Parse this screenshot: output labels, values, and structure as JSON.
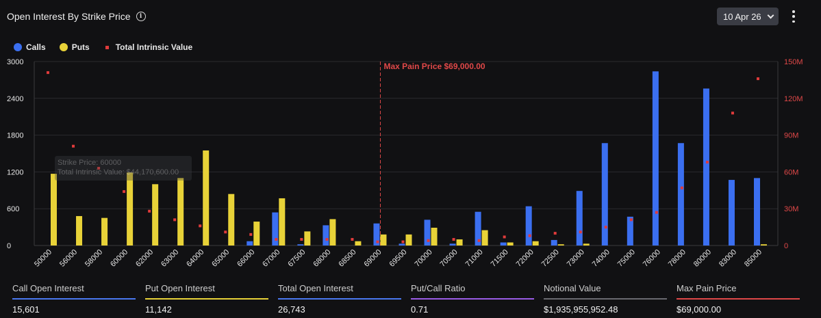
{
  "header": {
    "title": "Open Interest By Strike Price",
    "info_icon": "info-circle-icon",
    "date_select": "10 Apr 26",
    "more_icon": "vertical-ellipsis-icon"
  },
  "legend": {
    "calls": "Calls",
    "puts": "Puts",
    "intrinsic": "Total Intrinsic Value"
  },
  "colors": {
    "calls": "#3b6ff0",
    "puts": "#e8d238",
    "intrinsic": "#e03b3b",
    "maxpain": "#e04848"
  },
  "tooltip": {
    "strike": "Strike Price: 60000",
    "intrinsic": "Total Intrinsic Value: $44,170,600.00"
  },
  "chart_data": {
    "type": "bar",
    "categories": [
      "50000",
      "56000",
      "58000",
      "60000",
      "62000",
      "63000",
      "64000",
      "65000",
      "66000",
      "67000",
      "67500",
      "68000",
      "68500",
      "69000",
      "69500",
      "70000",
      "70500",
      "71000",
      "71500",
      "72000",
      "72500",
      "73000",
      "74000",
      "75000",
      "76000",
      "78000",
      "80000",
      "83000",
      "85000"
    ],
    "series": [
      {
        "name": "Calls",
        "values": [
          0,
          0,
          0,
          0,
          0,
          0,
          0,
          0,
          70,
          540,
          20,
          330,
          0,
          360,
          30,
          420,
          30,
          550,
          50,
          640,
          90,
          890,
          1670,
          470,
          2840,
          1670,
          2560,
          1070,
          1100
        ]
      },
      {
        "name": "Puts",
        "values": [
          1170,
          480,
          450,
          1190,
          1000,
          1100,
          1550,
          840,
          390,
          770,
          230,
          430,
          70,
          180,
          180,
          290,
          100,
          250,
          50,
          70,
          20,
          30,
          0,
          0,
          0,
          0,
          0,
          0,
          20
        ]
      },
      {
        "name": "Total Intrinsic Value",
        "axis": "right",
        "values": [
          141,
          81,
          63,
          44,
          28,
          21,
          16,
          11,
          9,
          5,
          5,
          5,
          5,
          3,
          3,
          4,
          5,
          4,
          7,
          8,
          10,
          11,
          15,
          21,
          27,
          47,
          68,
          108,
          136
        ]
      }
    ],
    "left_axis": {
      "ticks": [
        "0",
        "600",
        "1200",
        "1800",
        "2400",
        "3000"
      ],
      "ylim": [
        0,
        3000
      ]
    },
    "right_axis": {
      "ticks": [
        "0",
        "30M",
        "60M",
        "90M",
        "120M",
        "150M"
      ],
      "ylim": [
        0,
        150
      ],
      "unit": "M"
    },
    "max_pain": {
      "strike": "69000",
      "label": "Max Pain Price $69,000.00"
    },
    "grid": true
  },
  "stats": [
    {
      "label": "Call Open Interest",
      "value": "15,601",
      "color": "#4a78f0"
    },
    {
      "label": "Put Open Interest",
      "value": "11,142",
      "color": "#e8d238"
    },
    {
      "label": "Total Open Interest",
      "value": "26,743",
      "color": "#4a78f0"
    },
    {
      "label": "Put/Call Ratio",
      "value": "0.71",
      "color": "#9a5ce6"
    },
    {
      "label": "Notional Value",
      "value": "$1,935,955,952.48",
      "color": "#6a6a70"
    },
    {
      "label": "Max Pain Price",
      "value": "$69,000.00",
      "color": "#e04848"
    }
  ]
}
